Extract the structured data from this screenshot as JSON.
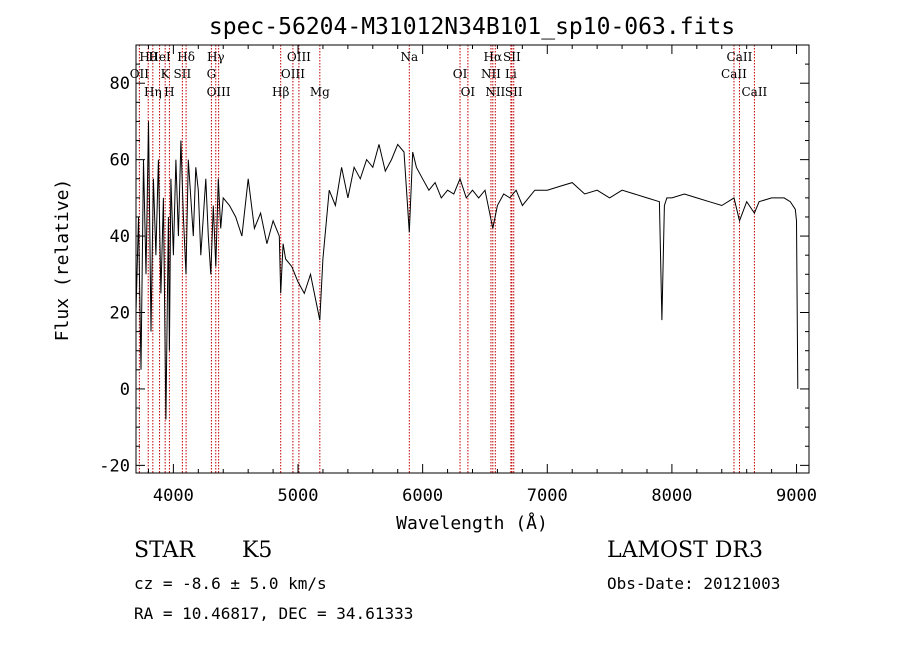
{
  "chart_data": {
    "type": "line",
    "title": "spec-56204-M31012N34B101_sp10-063.fits",
    "xlabel": "Wavelength (Å)",
    "ylabel": "Flux (relative)",
    "xlim": [
      3700,
      9100
    ],
    "ylim": [
      -22,
      90
    ],
    "xticks": [
      4000,
      5000,
      6000,
      7000,
      8000,
      9000
    ],
    "yticks": [
      -20,
      0,
      20,
      40,
      60,
      80
    ],
    "grid": false,
    "series": [
      {
        "name": "flux",
        "x": [
          3700,
          3720,
          3740,
          3760,
          3780,
          3800,
          3820,
          3840,
          3860,
          3880,
          3900,
          3920,
          3940,
          3960,
          3968,
          3980,
          4000,
          4020,
          4040,
          4060,
          4080,
          4101,
          4120,
          4140,
          4160,
          4180,
          4200,
          4220,
          4240,
          4260,
          4280,
          4300,
          4320,
          4340,
          4360,
          4380,
          4400,
          4450,
          4500,
          4550,
          4600,
          4650,
          4700,
          4750,
          4800,
          4850,
          4861,
          4880,
          4900,
          4950,
          5000,
          5050,
          5100,
          5150,
          5175,
          5200,
          5250,
          5300,
          5350,
          5400,
          5450,
          5500,
          5550,
          5600,
          5650,
          5700,
          5750,
          5800,
          5850,
          5893,
          5920,
          5950,
          6000,
          6050,
          6100,
          6150,
          6200,
          6250,
          6300,
          6350,
          6400,
          6450,
          6500,
          6563,
          6600,
          6650,
          6700,
          6750,
          6800,
          6900,
          7000,
          7100,
          7200,
          7300,
          7400,
          7500,
          7600,
          7700,
          7800,
          7900,
          7920,
          7940,
          7960,
          8000,
          8100,
          8200,
          8300,
          8400,
          8498,
          8542,
          8600,
          8662,
          8700,
          8800,
          8900,
          8950,
          8990,
          9000,
          9010
        ],
        "values": [
          20,
          45,
          5,
          60,
          30,
          70,
          15,
          55,
          35,
          60,
          25,
          50,
          -8,
          45,
          10,
          55,
          35,
          60,
          40,
          65,
          45,
          30,
          60,
          50,
          40,
          58,
          52,
          35,
          45,
          55,
          40,
          30,
          48,
          32,
          55,
          42,
          50,
          48,
          45,
          40,
          55,
          42,
          46,
          38,
          44,
          40,
          25,
          38,
          34,
          32,
          28,
          25,
          30,
          22,
          18,
          34,
          52,
          48,
          58,
          50,
          58,
          55,
          60,
          58,
          64,
          57,
          60,
          64,
          62,
          41,
          62,
          58,
          55,
          52,
          54,
          50,
          52,
          51,
          55,
          50,
          52,
          50,
          52,
          42,
          48,
          51,
          50,
          52,
          48,
          52,
          52,
          53,
          54,
          51,
          52,
          50,
          52,
          51,
          50,
          49,
          18,
          48,
          50,
          50,
          51,
          50,
          49,
          48,
          50,
          44,
          49,
          46,
          49,
          50,
          50,
          49,
          47,
          44,
          0
        ]
      }
    ],
    "lines": [
      {
        "label": "Hθ",
        "wavelength": 3798
      },
      {
        "label": "OII",
        "wavelength": 3727
      },
      {
        "label": "Hη",
        "wavelength": 3835
      },
      {
        "label": "HeI",
        "wavelength": 3889
      },
      {
        "label": "K",
        "wavelength": 3934
      },
      {
        "label": "H",
        "wavelength": 3968
      },
      {
        "label": "Hδ",
        "wavelength": 4102
      },
      {
        "label": "SII",
        "wavelength": 4072
      },
      {
        "label": "OIII",
        "wavelength": 4363
      },
      {
        "label": "Hγ",
        "wavelength": 4340
      },
      {
        "label": "G",
        "wavelength": 4305
      },
      {
        "label": "Hβ",
        "wavelength": 4861
      },
      {
        "label": "OIII",
        "wavelength": 5007
      },
      {
        "label": "OIII",
        "wavelength": 4959
      },
      {
        "label": "Mg",
        "wavelength": 5175
      },
      {
        "label": "Na",
        "wavelength": 5893
      },
      {
        "label": "OI",
        "wavelength": 6300
      },
      {
        "label": "OI",
        "wavelength": 6363
      },
      {
        "label": "Hα",
        "wavelength": 6563
      },
      {
        "label": "NII",
        "wavelength": 6548
      },
      {
        "label": "NII",
        "wavelength": 6583
      },
      {
        "label": "SII",
        "wavelength": 6716
      },
      {
        "label": "Li",
        "wavelength": 6708
      },
      {
        "label": "SII",
        "wavelength": 6731
      },
      {
        "label": "CaII",
        "wavelength": 8542
      },
      {
        "label": "CaII",
        "wavelength": 8498
      },
      {
        "label": "CaII",
        "wavelength": 8662
      }
    ]
  },
  "info": {
    "object_class": "STAR",
    "subclass": "K5",
    "redshift": "cz = -8.6 ± 5.0 km/s",
    "coords": "RA =  10.46817, DEC =  34.61333",
    "survey": "LAMOST DR3",
    "obs_date": "Obs-Date: 20121003"
  },
  "colors": {
    "spectrum": "#000000",
    "line_markers": "#c00000",
    "axes": "#000000",
    "background": "#ffffff"
  }
}
